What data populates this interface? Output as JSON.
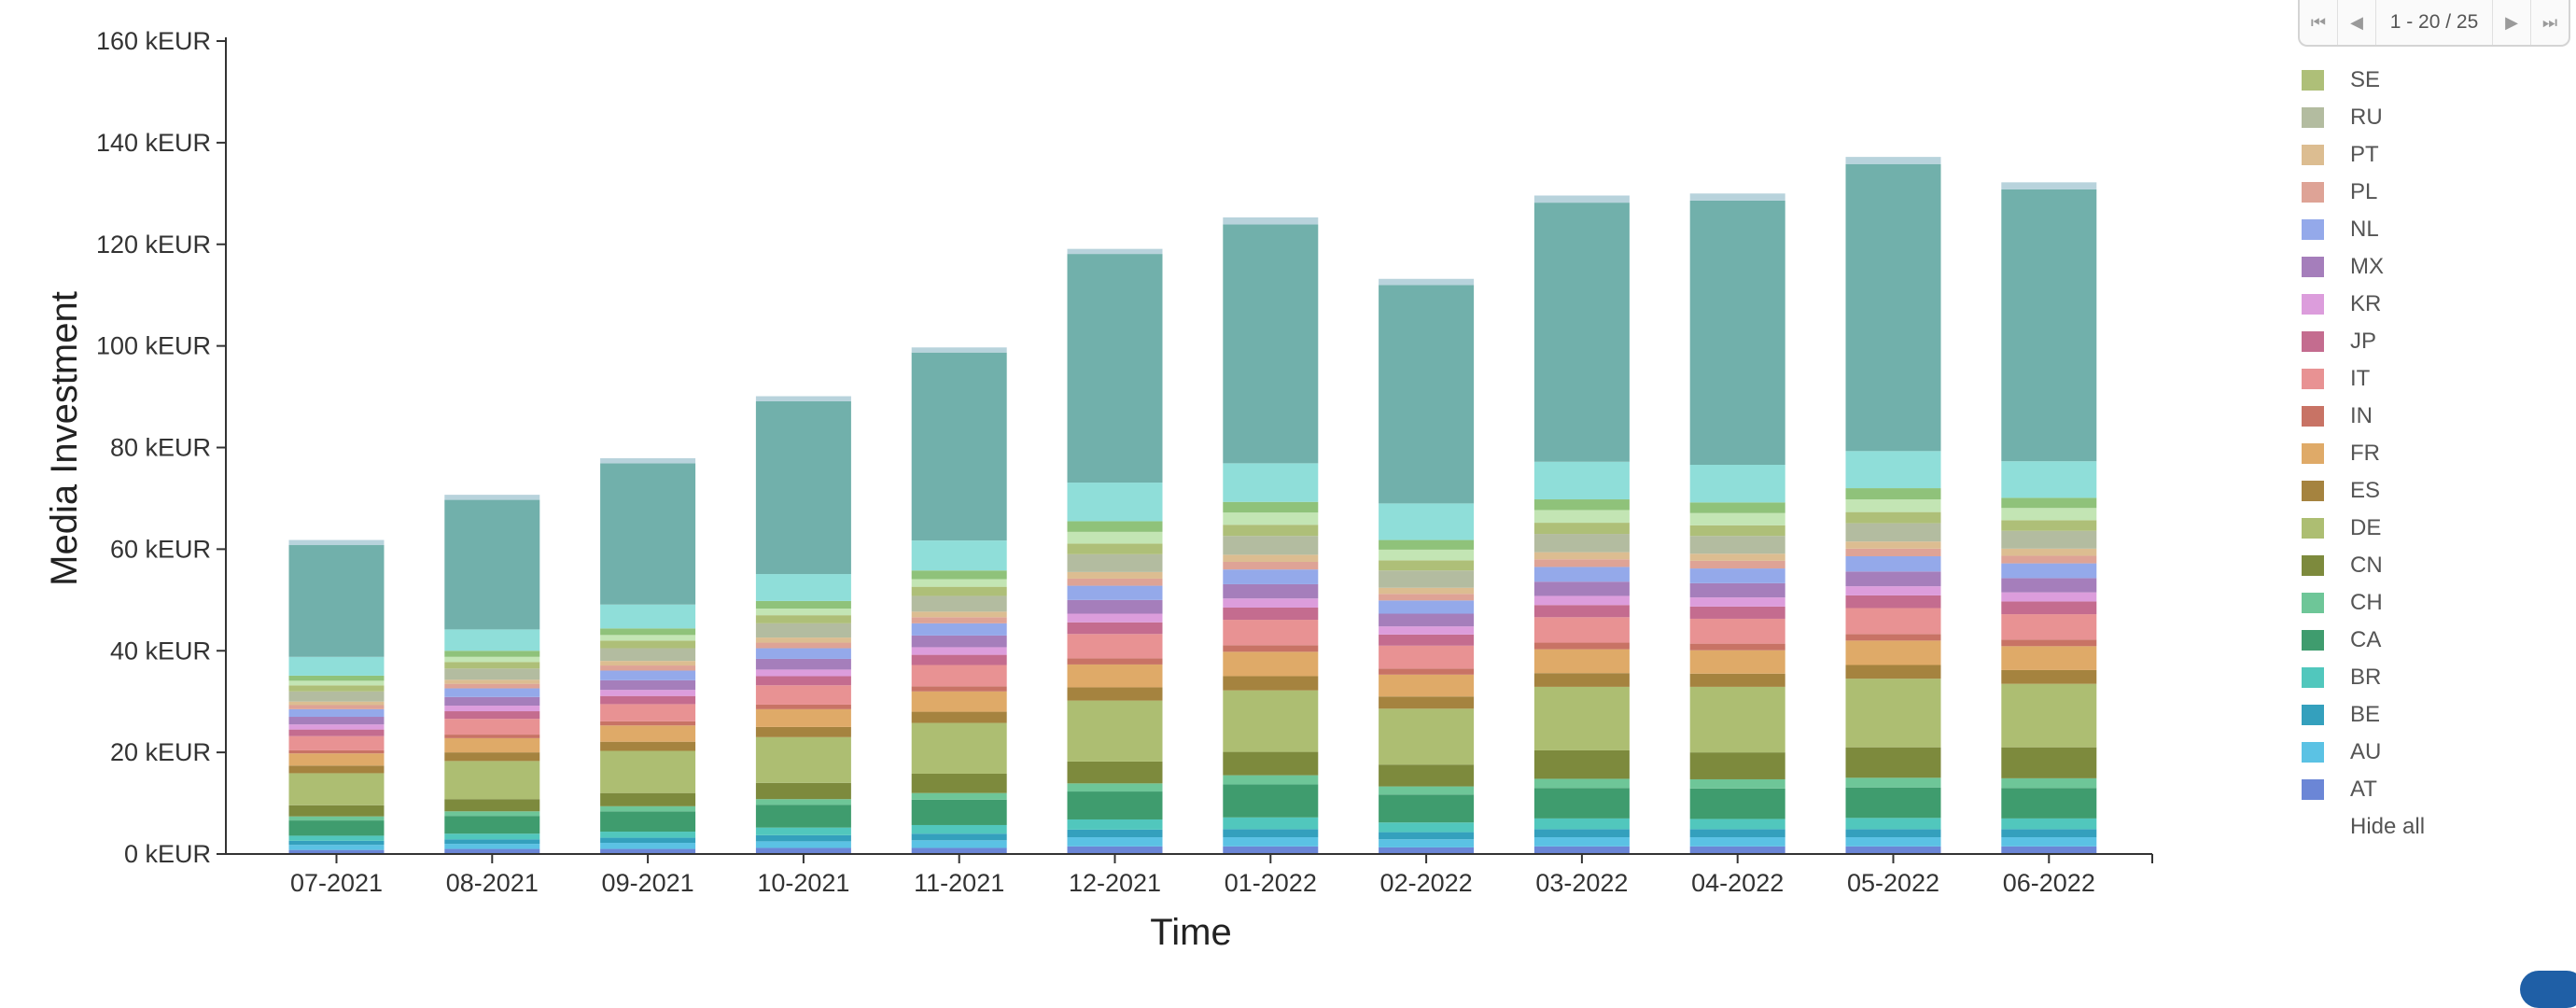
{
  "pager": {
    "info": "1 - 20 / 25"
  },
  "legend": {
    "items": [
      {
        "code": "SE",
        "color": "#aebf78"
      },
      {
        "code": "RU",
        "color": "#b3bca0"
      },
      {
        "code": "PT",
        "color": "#dcbd91"
      },
      {
        "code": "PL",
        "color": "#dea396"
      },
      {
        "code": "NL",
        "color": "#94a9ea"
      },
      {
        "code": "MX",
        "color": "#a57ebb"
      },
      {
        "code": "KR",
        "color": "#dc9ddc"
      },
      {
        "code": "JP",
        "color": "#c46c8f"
      },
      {
        "code": "IT",
        "color": "#e89293"
      },
      {
        "code": "IN",
        "color": "#c87365"
      },
      {
        "code": "FR",
        "color": "#dfaa68"
      },
      {
        "code": "ES",
        "color": "#a5833f"
      },
      {
        "code": "DE",
        "color": "#adbe72"
      },
      {
        "code": "CN",
        "color": "#7d8a3d"
      },
      {
        "code": "CH",
        "color": "#6ec698"
      },
      {
        "code": "CA",
        "color": "#3f9c6e"
      },
      {
        "code": "BR",
        "color": "#51c7bd"
      },
      {
        "code": "BE",
        "color": "#34a0bd"
      },
      {
        "code": "AU",
        "color": "#5bc2e4"
      },
      {
        "code": "AT",
        "color": "#6b86d6"
      }
    ],
    "hide_all": "Hide all"
  },
  "chart_data": {
    "type": "bar",
    "stacked": true,
    "xlabel": "Time",
    "ylabel": "Media Investment",
    "ylim": [
      0,
      160
    ],
    "yticks": [
      0,
      20,
      40,
      60,
      80,
      100,
      120,
      140,
      160
    ],
    "ytick_labels": [
      "0 kEUR",
      "20 kEUR",
      "40 kEUR",
      "60 kEUR",
      "80 kEUR",
      "100 kEUR",
      "120 kEUR",
      "140 kEUR",
      "160 kEUR"
    ],
    "categories": [
      "07-2021",
      "08-2021",
      "09-2021",
      "10-2021",
      "11-2021",
      "12-2021",
      "01-2022",
      "02-2022",
      "03-2022",
      "04-2022",
      "05-2022",
      "06-2022"
    ],
    "series": [
      {
        "name": "AT",
        "color": "#6b86d6",
        "values": [
          0.8,
          1.0,
          1.0,
          1.2,
          1.2,
          1.5,
          1.5,
          1.3,
          1.5,
          1.5,
          1.5,
          1.5
        ]
      },
      {
        "name": "AU",
        "color": "#5bc2e4",
        "values": [
          1.0,
          1.0,
          1.2,
          1.3,
          1.5,
          1.8,
          1.8,
          1.6,
          1.8,
          1.8,
          1.8,
          1.8
        ]
      },
      {
        "name": "BE",
        "color": "#34a0bd",
        "values": [
          0.8,
          0.9,
          1.0,
          1.2,
          1.3,
          1.5,
          1.6,
          1.4,
          1.6,
          1.6,
          1.6,
          1.6
        ]
      },
      {
        "name": "BR",
        "color": "#51c7bd",
        "values": [
          1.0,
          1.1,
          1.2,
          1.5,
          1.7,
          2.0,
          2.3,
          1.9,
          2.1,
          2.0,
          2.2,
          2.1
        ]
      },
      {
        "name": "CA",
        "color": "#3f9c6e",
        "values": [
          3.0,
          3.5,
          4.0,
          4.5,
          5.0,
          5.5,
          6.5,
          5.5,
          6.0,
          6.0,
          6.0,
          6.0
        ]
      },
      {
        "name": "CH",
        "color": "#6ec698",
        "values": [
          0.8,
          0.9,
          1.0,
          1.1,
          1.3,
          1.6,
          1.8,
          1.6,
          1.8,
          1.8,
          1.9,
          1.9
        ]
      },
      {
        "name": "CN",
        "color": "#7d8a3d",
        "values": [
          2.2,
          2.4,
          2.6,
          3.2,
          3.8,
          4.3,
          4.6,
          4.3,
          5.6,
          5.3,
          6.0,
          6.1
        ]
      },
      {
        "name": "DE",
        "color": "#adbe72",
        "values": [
          6.3,
          7.5,
          8.3,
          9.0,
          10.0,
          12.0,
          12.1,
          11.0,
          12.5,
          12.9,
          13.5,
          12.5
        ]
      },
      {
        "name": "ES",
        "color": "#a5833f",
        "values": [
          1.5,
          1.7,
          1.8,
          2.0,
          2.2,
          2.6,
          2.8,
          2.4,
          2.7,
          2.6,
          2.7,
          2.7
        ]
      },
      {
        "name": "FR",
        "color": "#dfaa68",
        "values": [
          2.4,
          2.8,
          3.2,
          3.5,
          4.0,
          4.5,
          4.8,
          4.3,
          4.7,
          4.6,
          4.8,
          4.7
        ]
      },
      {
        "name": "IN",
        "color": "#c87365",
        "values": [
          0.6,
          0.7,
          0.8,
          0.9,
          1.0,
          1.2,
          1.3,
          1.2,
          1.3,
          1.3,
          1.3,
          1.3
        ]
      },
      {
        "name": "IT",
        "color": "#e89293",
        "values": [
          2.8,
          3.1,
          3.4,
          3.8,
          4.2,
          4.8,
          5.0,
          4.5,
          5.0,
          4.9,
          5.1,
          5.0
        ]
      },
      {
        "name": "JP",
        "color": "#c46c8f",
        "values": [
          1.3,
          1.5,
          1.6,
          1.8,
          2.0,
          2.3,
          2.4,
          2.2,
          2.4,
          2.4,
          2.5,
          2.5
        ]
      },
      {
        "name": "KR",
        "color": "#dc9ddc",
        "values": [
          1.0,
          1.1,
          1.2,
          1.3,
          1.5,
          1.7,
          1.8,
          1.6,
          1.8,
          1.8,
          1.8,
          1.8
        ]
      },
      {
        "name": "MX",
        "color": "#a57ebb",
        "values": [
          1.5,
          1.7,
          1.9,
          2.1,
          2.3,
          2.7,
          2.8,
          2.5,
          2.8,
          2.8,
          2.9,
          2.8
        ]
      },
      {
        "name": "NL",
        "color": "#94a9ea",
        "values": [
          1.5,
          1.7,
          1.9,
          2.1,
          2.4,
          2.8,
          2.9,
          2.6,
          2.9,
          2.9,
          3.0,
          2.9
        ]
      },
      {
        "name": "PL",
        "color": "#dea396",
        "values": [
          0.8,
          0.9,
          1.0,
          1.1,
          1.2,
          1.4,
          1.5,
          1.3,
          1.5,
          1.5,
          1.5,
          1.5
        ]
      },
      {
        "name": "PT",
        "color": "#dcbd91",
        "values": [
          0.7,
          0.8,
          0.9,
          1.0,
          1.1,
          1.3,
          1.4,
          1.2,
          1.4,
          1.4,
          1.4,
          1.4
        ]
      },
      {
        "name": "RU",
        "color": "#b3bca0",
        "values": [
          2.0,
          2.2,
          2.5,
          2.8,
          3.1,
          3.5,
          3.7,
          3.4,
          3.6,
          3.5,
          3.6,
          3.5
        ]
      },
      {
        "name": "SE",
        "color": "#aebf78",
        "values": [
          1.2,
          1.3,
          1.5,
          1.6,
          1.8,
          2.1,
          2.2,
          2.0,
          2.2,
          2.1,
          2.2,
          2.1
        ]
      },
      {
        "name": "",
        "color": "#c3e5b4",
        "values": [
          0.9,
          1.0,
          1.1,
          1.3,
          1.5,
          2.3,
          2.4,
          2.1,
          2.5,
          2.4,
          2.5,
          2.4
        ]
      },
      {
        "name": "",
        "color": "#8fc27a",
        "values": [
          1.0,
          1.2,
          1.3,
          1.5,
          1.7,
          2.1,
          2.1,
          1.9,
          2.1,
          2.1,
          2.2,
          2.0
        ]
      },
      {
        "name": "",
        "color": "#8fded9",
        "values": [
          3.7,
          4.2,
          4.7,
          5.3,
          5.9,
          7.6,
          7.6,
          7.2,
          7.4,
          7.4,
          7.3,
          7.2
        ]
      },
      {
        "name": "",
        "color": "#71b0ab",
        "values": [
          22.0,
          25.5,
          27.8,
          34.0,
          37.0,
          45.0,
          47.0,
          43.0,
          51.0,
          52.0,
          56.5,
          53.5
        ]
      },
      {
        "name": "",
        "color": "#b8d3dc",
        "values": [
          1.0,
          1.0,
          1.0,
          1.0,
          1.0,
          1.0,
          1.4,
          1.2,
          1.4,
          1.4,
          1.4,
          1.4
        ]
      }
    ]
  }
}
